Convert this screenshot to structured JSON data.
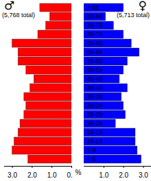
{
  "chart_data": {
    "type": "bar",
    "orientation": "horizontal",
    "xlabel": "%",
    "categories": [
      "> 85",
      "80-84",
      "75-79",
      "70-74",
      "65-69",
      "60-64",
      "55-59",
      "50-54",
      "45-49",
      "40-44",
      "35-39",
      "30-34",
      "25-29",
      "20-24",
      "15-19",
      "10-14",
      "5-9",
      "< 5"
    ],
    "xlim": [
      0,
      3.4
    ],
    "series": [
      {
        "name": "♂",
        "annotation": "(5,768 total)",
        "color": "#ff0000",
        "xticks": [
          0,
          1,
          2,
          3
        ],
        "values": [
          1.6,
          1.1,
          1.3,
          1.7,
          3.0,
          2.7,
          2.7,
          2.3,
          1.9,
          2.1,
          2.4,
          2.3,
          2.4,
          2.6,
          2.7,
          2.9,
          3.0,
          2.2
        ]
      },
      {
        "name": "♀",
        "annotation": "(5,713 total)",
        "color": "#0000ff",
        "xticks": [
          1,
          2,
          3
        ],
        "values": [
          2.0,
          1.1,
          1.5,
          2.0,
          2.4,
          2.8,
          2.2,
          2.0,
          1.8,
          2.2,
          1.9,
          2.0,
          2.1,
          1.6,
          2.6,
          2.6,
          2.7,
          2.9
        ]
      }
    ]
  }
}
